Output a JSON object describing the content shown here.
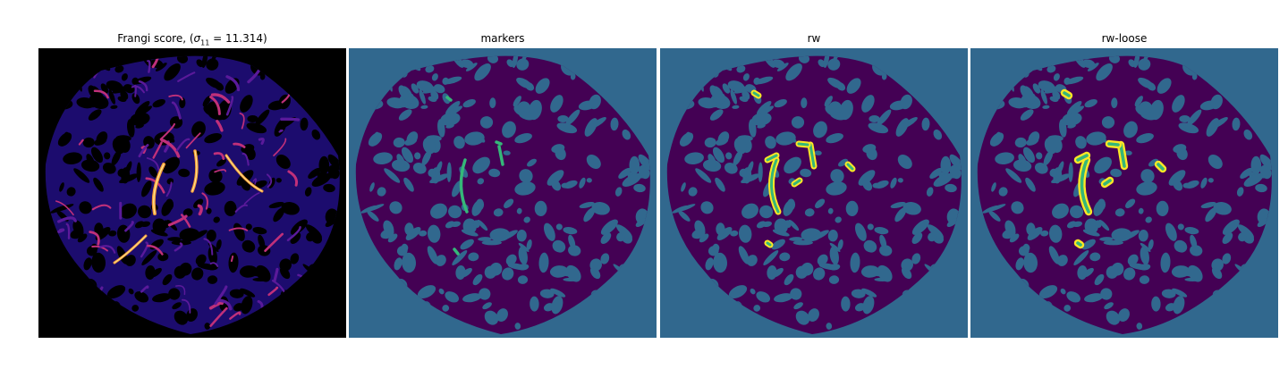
{
  "panels": [
    {
      "title_prefix": "Frangi score, (",
      "sigma_symbol": "σ",
      "sigma_sub": "11",
      "sigma_value": " = 11.314)"
    },
    {
      "title": "markers"
    },
    {
      "title": "rw"
    },
    {
      "title": "rw-loose"
    }
  ],
  "colors": {
    "frangi_bg": "#000000",
    "frangi_tissue": "#1c0c6e",
    "frangi_low": "#5a1a9a",
    "frangi_mid": "#c0307a",
    "frangi_high": "#f59a38",
    "frangi_peak": "#fce38a",
    "label_bg": "#31688e",
    "label_tissue": "#440154",
    "label_marker": "#35b779",
    "label_vessel_fill": "#35b779",
    "label_vessel_edge": "#fde725"
  }
}
